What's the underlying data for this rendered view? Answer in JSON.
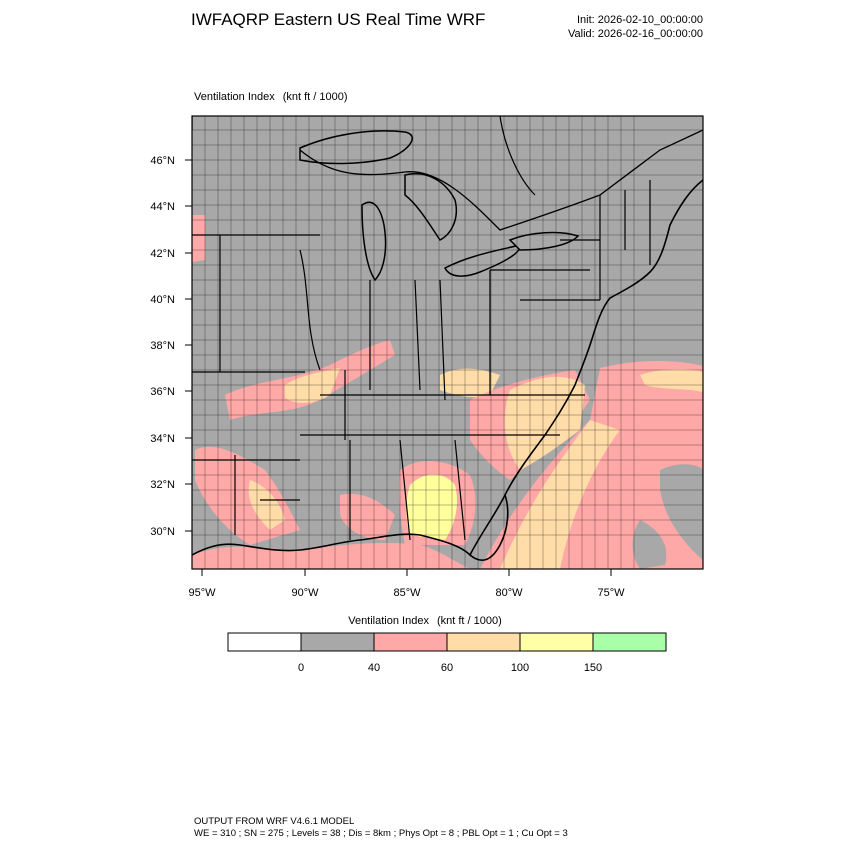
{
  "header": {
    "title": "IWFAQRP Eastern US Real Time WRF",
    "init": "Init: 2026-02-10_00:00:00",
    "valid": "Valid: 2026-02-16_00:00:00"
  },
  "map": {
    "field": "Ventilation Index",
    "units": "(knt ft / 1000)",
    "lat_ticks": [
      "30°N",
      "32°N",
      "34°N",
      "36°N",
      "38°N",
      "40°N",
      "42°N",
      "44°N",
      "46°N"
    ],
    "lon_ticks": [
      "95°W",
      "90°W",
      "85°W",
      "80°W",
      "75°W"
    ],
    "colors": {
      "land_low": "#a8a8a8",
      "band_40_60": "#ffa8a8",
      "band_60_100": "#ffdca8",
      "band_100_150": "#ffffa8",
      "ocean": "#a8a8a8"
    }
  },
  "legend": {
    "title": "Ventilation Index",
    "units": "(knt ft / 1000)",
    "bins": [
      {
        "color": "#ffffff"
      },
      {
        "color": "#a8a8a8"
      },
      {
        "color": "#ffa8a8"
      },
      {
        "color": "#ffdca8"
      },
      {
        "color": "#ffffa8"
      },
      {
        "color": "#a8ffa8"
      }
    ],
    "labels": [
      "0",
      "40",
      "60",
      "100",
      "150"
    ]
  },
  "footer": {
    "line1": "OUTPUT FROM WRF V4.6.1 MODEL",
    "line2": "WE = 310 ; SN = 275 ; Levels = 38 ; Dis = 8km ; Phys Opt = 8 ; PBL Opt = 1 ; Cu Opt = 3"
  }
}
